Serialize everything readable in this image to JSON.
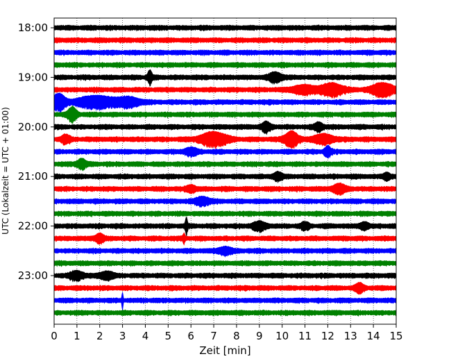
{
  "chart_data": {
    "type": "line",
    "title": "",
    "xlabel": "Zeit  [min]",
    "ylabel": "UTC (Lokalzeit = UTC + 01:00)",
    "xlim": [
      0,
      15
    ],
    "x_ticks": [
      0,
      1,
      2,
      3,
      4,
      5,
      6,
      7,
      8,
      9,
      10,
      11,
      12,
      13,
      14,
      15
    ],
    "x_tick_labels": [
      "0",
      "1",
      "2",
      "3",
      "4",
      "5",
      "6",
      "7",
      "8",
      "9",
      "10",
      "11",
      "12",
      "13",
      "14",
      "15"
    ],
    "y_tick_labels": [
      "18:00",
      "19:00",
      "20:00",
      "21:00",
      "22:00",
      "23:00"
    ],
    "y_ticks_trace_index": [
      0,
      4,
      8,
      12,
      16,
      20
    ],
    "trace_minutes": 15,
    "trace_count": 24,
    "grid": "vertical dotted",
    "legend": "none",
    "series": [
      {
        "start": "18:00",
        "color": "#000000",
        "events": []
      },
      {
        "start": "18:15",
        "color": "#ff0000",
        "events": []
      },
      {
        "start": "18:30",
        "color": "#0000ff",
        "events": []
      },
      {
        "start": "18:45",
        "color": "#008000",
        "events": []
      },
      {
        "start": "19:00",
        "color": "#000000",
        "events": [
          {
            "t": 4.2,
            "a": 2.5,
            "w": 0.1
          },
          {
            "t": 9.7,
            "a": 1.6,
            "w": 0.3
          }
        ]
      },
      {
        "start": "19:15",
        "color": "#ff0000",
        "events": [
          {
            "t": 12.2,
            "a": 2.2,
            "w": 0.5
          },
          {
            "t": 14.4,
            "a": 2.4,
            "w": 0.5
          },
          {
            "t": 11.0,
            "a": 1.4,
            "w": 0.6
          }
        ]
      },
      {
        "start": "19:30",
        "color": "#0000ff",
        "events": [
          {
            "t": 0.2,
            "a": 3.0,
            "w": 0.3
          },
          {
            "t": 1.8,
            "a": 2.2,
            "w": 0.8
          },
          {
            "t": 3.2,
            "a": 1.6,
            "w": 0.6
          }
        ]
      },
      {
        "start": "19:45",
        "color": "#008000",
        "events": [
          {
            "t": 0.8,
            "a": 2.6,
            "w": 0.2
          }
        ]
      },
      {
        "start": "20:00",
        "color": "#000000",
        "events": [
          {
            "t": 9.3,
            "a": 1.6,
            "w": 0.2
          },
          {
            "t": 11.6,
            "a": 1.4,
            "w": 0.2
          }
        ]
      },
      {
        "start": "20:15",
        "color": "#ff0000",
        "events": [
          {
            "t": 7.0,
            "a": 2.6,
            "w": 0.6
          },
          {
            "t": 10.4,
            "a": 3.0,
            "w": 0.3
          },
          {
            "t": 0.5,
            "a": 1.5,
            "w": 0.2
          },
          {
            "t": 11.8,
            "a": 1.6,
            "w": 0.5
          }
        ]
      },
      {
        "start": "20:30",
        "color": "#0000ff",
        "events": [
          {
            "t": 12.0,
            "a": 1.8,
            "w": 0.15
          },
          {
            "t": 6.0,
            "a": 1.2,
            "w": 0.3
          }
        ]
      },
      {
        "start": "20:45",
        "color": "#008000",
        "events": [
          {
            "t": 1.2,
            "a": 1.8,
            "w": 0.2
          }
        ]
      },
      {
        "start": "21:00",
        "color": "#000000",
        "events": [
          {
            "t": 9.8,
            "a": 1.4,
            "w": 0.2
          },
          {
            "t": 14.6,
            "a": 1.2,
            "w": 0.15
          }
        ]
      },
      {
        "start": "21:15",
        "color": "#ff0000",
        "events": [
          {
            "t": 12.5,
            "a": 1.6,
            "w": 0.3
          },
          {
            "t": 6.0,
            "a": 1.2,
            "w": 0.2
          }
        ]
      },
      {
        "start": "21:30",
        "color": "#0000ff",
        "events": [
          {
            "t": 6.5,
            "a": 1.5,
            "w": 0.3
          }
        ]
      },
      {
        "start": "21:45",
        "color": "#008000",
        "events": []
      },
      {
        "start": "22:00",
        "color": "#000000",
        "events": [
          {
            "t": 5.8,
            "a": 3.2,
            "w": 0.05
          },
          {
            "t": 9.0,
            "a": 1.4,
            "w": 0.3
          },
          {
            "t": 11.0,
            "a": 1.2,
            "w": 0.2
          },
          {
            "t": 13.6,
            "a": 1.2,
            "w": 0.2
          }
        ]
      },
      {
        "start": "22:15",
        "color": "#ff0000",
        "events": [
          {
            "t": 2.0,
            "a": 1.6,
            "w": 0.2
          },
          {
            "t": 5.7,
            "a": 1.5,
            "w": 0.05
          }
        ]
      },
      {
        "start": "22:30",
        "color": "#0000ff",
        "events": [
          {
            "t": 7.5,
            "a": 1.2,
            "w": 0.3
          }
        ]
      },
      {
        "start": "22:45",
        "color": "#008000",
        "events": []
      },
      {
        "start": "23:00",
        "color": "#000000",
        "events": [
          {
            "t": 1.0,
            "a": 1.5,
            "w": 0.3
          },
          {
            "t": 2.3,
            "a": 1.3,
            "w": 0.3
          }
        ]
      },
      {
        "start": "23:15",
        "color": "#ff0000",
        "events": [
          {
            "t": 13.4,
            "a": 1.6,
            "w": 0.2
          }
        ]
      },
      {
        "start": "23:30",
        "color": "#0000ff",
        "events": [
          {
            "t": 3.0,
            "a": 2.8,
            "w": 0.03
          }
        ]
      },
      {
        "start": "23:45",
        "color": "#008000",
        "events": []
      }
    ]
  }
}
